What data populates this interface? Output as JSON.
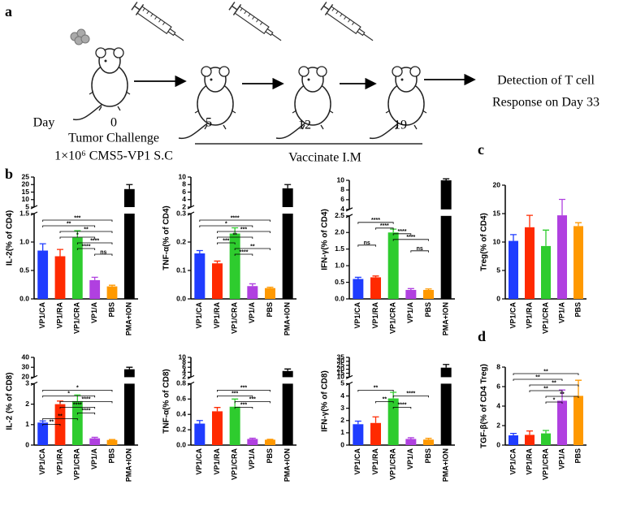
{
  "schematic": {
    "panel": "a",
    "day_label": "Day",
    "days": [
      "0",
      "5",
      "12",
      "19"
    ],
    "challenge": "Tumor Challenge",
    "dose": "1×10⁶ CMS5-VP1 S.C",
    "vaccinate": "Vaccinate I.M",
    "detection": [
      "Detection of T cell",
      "Response on Day 33"
    ]
  },
  "panel_labels": [
    "b",
    "c",
    "d"
  ],
  "chart_data": [
    {
      "type": "bar",
      "y_label": "IL-2(% of CD4)",
      "categories": [
        "VP1/CA",
        "VP1/RA",
        "VP1/CRA",
        "VP1/A",
        "PBS",
        "PMA+ION"
      ],
      "colors": [
        "#1f3cff",
        "#ff2a00",
        "#2ecc2e",
        "#b040e0",
        "#ff9900",
        "#000000"
      ],
      "values": [
        0.85,
        0.75,
        1.08,
        0.33,
        0.22,
        17
      ],
      "errors": [
        0.12,
        0.12,
        0.12,
        0.05,
        0.02,
        3
      ],
      "ylim": [
        0,
        1.5
      ],
      "yticks": [
        {
          "value": 0,
          "label": "0.0"
        },
        0.5,
        {
          "value": 1,
          "label": "1.0"
        },
        1.5
      ],
      "break": {
        "ylim": [
          5,
          25
        ],
        "yticks": [
          5,
          10,
          15,
          20,
          25
        ]
      },
      "annotations": [
        {
          "pair": [
            "VP1/CA",
            "PBS"
          ],
          "label": "***"
        },
        {
          "pair": [
            "VP1/CA",
            "VP1/A"
          ],
          "label": "**"
        },
        {
          "pair": [
            "VP1/RA",
            "PBS"
          ],
          "label": "**"
        },
        {
          "pair": [
            "VP1/RA",
            "VP1/A"
          ],
          "label": "*"
        },
        {
          "pair": [
            "VP1/CRA",
            "PBS"
          ],
          "label": "****"
        },
        {
          "pair": [
            "VP1/CRA",
            "VP1/A"
          ],
          "label": "****"
        },
        {
          "pair": [
            "VP1/A",
            "PBS"
          ],
          "label": "ns"
        }
      ]
    },
    {
      "type": "bar",
      "y_label": "TNF-α(% of CD4)",
      "categories": [
        "VP1/CA",
        "VP1/RA",
        "VP1/CRA",
        "VP1/A",
        "PBS",
        "PMA+ION"
      ],
      "colors": [
        "#1f3cff",
        "#ff2a00",
        "#2ecc2e",
        "#b040e0",
        "#ff9900",
        "#000000"
      ],
      "values": [
        0.16,
        0.125,
        0.23,
        0.045,
        0.038,
        7
      ],
      "errors": [
        0.01,
        0.008,
        0.02,
        0.008,
        0.003,
        1
      ],
      "ylim": [
        0,
        0.3
      ],
      "yticks": [
        {
          "value": 0,
          "label": "0.0"
        },
        0.1,
        0.2,
        0.3
      ],
      "break": {
        "ylim": [
          2,
          10
        ],
        "yticks": [
          2,
          4,
          6,
          8,
          10
        ]
      },
      "annotations": [
        {
          "pair": [
            "VP1/CA",
            "PBS"
          ],
          "label": "****"
        },
        {
          "pair": [
            "VP1/CA",
            "VP1/A"
          ],
          "label": "*"
        },
        {
          "pair": [
            "VP1/RA",
            "PBS"
          ],
          "label": "***"
        },
        {
          "pair": [
            "VP1/RA",
            "VP1/A"
          ],
          "label": "**"
        },
        {
          "pair": [
            "VP1/RA",
            "VP1/CRA"
          ],
          "label": "***"
        },
        {
          "pair": [
            "VP1/CRA",
            "PBS"
          ],
          "label": "**"
        },
        {
          "pair": [
            "VP1/CRA",
            "VP1/A"
          ],
          "label": "****"
        }
      ]
    },
    {
      "type": "bar",
      "y_label": "IFN-γ(% of CD4)",
      "categories": [
        "VP1/CA",
        "VP1/RA",
        "VP1/CRA",
        "VP1/A",
        "PBS",
        "PMA+ION"
      ],
      "colors": [
        "#1f3cff",
        "#ff2a00",
        "#2ecc2e",
        "#b040e0",
        "#ff9900",
        "#000000"
      ],
      "values": [
        0.6,
        0.65,
        2.0,
        0.27,
        0.27,
        10
      ],
      "errors": [
        0.05,
        0.04,
        0.1,
        0.04,
        0.03,
        0.3
      ],
      "ylim": [
        0,
        2.5
      ],
      "yticks": [
        {
          "value": 0,
          "label": "0.0"
        },
        0.5,
        {
          "value": 1,
          "label": "1.0"
        },
        1.5,
        {
          "value": 2,
          "label": "2.0"
        },
        2.5
      ],
      "break": {
        "ylim": [
          4,
          10
        ],
        "yticks": [
          4,
          6,
          8,
          10
        ]
      },
      "annotations": [
        {
          "pair": [
            "VP1/CA",
            "VP1/CRA"
          ],
          "label": "****"
        },
        {
          "pair": [
            "VP1/RA",
            "VP1/CRA"
          ],
          "label": "****"
        },
        {
          "pair": [
            "VP1/CRA",
            "VP1/A"
          ],
          "label": "****"
        },
        {
          "pair": [
            "VP1/CRA",
            "PBS"
          ],
          "label": "****"
        },
        {
          "pair": [
            "VP1/CA",
            "VP1/RA"
          ],
          "label": "ns"
        },
        {
          "pair": [
            "VP1/A",
            "PBS"
          ],
          "label": "ns"
        }
      ]
    },
    {
      "type": "bar",
      "y_label": "Treg(% of CD4)",
      "categories": [
        "VP1/CA",
        "VP1/RA",
        "VP1/CRA",
        "VP1/A",
        "PBS"
      ],
      "colors": [
        "#1f3cff",
        "#ff2a00",
        "#2ecc2e",
        "#b040e0",
        "#ff9900"
      ],
      "values": [
        10.2,
        12.6,
        9.3,
        14.7,
        12.8
      ],
      "errors": [
        1.1,
        2.1,
        2.8,
        2.8,
        0.6
      ],
      "ylim": [
        0,
        20
      ],
      "yticks": [
        0,
        5,
        10,
        15,
        20
      ]
    },
    {
      "type": "bar",
      "y_label": "IL-2 (% of CD8)",
      "categories": [
        "VP1/CA",
        "VP1/RA",
        "VP1/CRA",
        "VP1/A",
        "PBS",
        "PMA+ION"
      ],
      "colors": [
        "#1f3cff",
        "#ff2a00",
        "#2ecc2e",
        "#b040e0",
        "#ff9900",
        "#000000"
      ],
      "values": [
        1.1,
        2.0,
        2.15,
        0.33,
        0.25,
        28
      ],
      "errors": [
        0.08,
        0.15,
        0.3,
        0.05,
        0.02,
        2
      ],
      "ylim": [
        0,
        3
      ],
      "yticks": [
        0,
        1,
        2,
        3
      ],
      "break": {
        "ylim": [
          20,
          40
        ],
        "yticks": [
          20,
          30,
          40
        ]
      },
      "annotations": [
        {
          "pair": [
            "VP1/CA",
            "PBS"
          ],
          "label": "*"
        },
        {
          "pair": [
            "VP1/CA",
            "VP1/A"
          ],
          "label": "*"
        },
        {
          "pair": [
            "VP1/RA",
            "PBS"
          ],
          "label": "****"
        },
        {
          "pair": [
            "VP1/RA",
            "VP1/A"
          ],
          "label": "****"
        },
        {
          "pair": [
            "VP1/CRA",
            "VP1/A"
          ],
          "label": "****"
        },
        {
          "pair": [
            "VP1/CA",
            "VP1/CRA"
          ],
          "label": "**"
        },
        {
          "pair": [
            "VP1/CA",
            "VP1/RA"
          ],
          "label": "**"
        }
      ]
    },
    {
      "type": "bar",
      "y_label": "TNF-α(% of CD8)",
      "categories": [
        "VP1/CA",
        "VP1/RA",
        "VP1/CRA",
        "VP1/A",
        "PBS",
        "PMA+ION"
      ],
      "colors": [
        "#1f3cff",
        "#ff2a00",
        "#2ecc2e",
        "#b040e0",
        "#ff9900",
        "#000000"
      ],
      "values": [
        0.28,
        0.44,
        0.5,
        0.08,
        0.07,
        4.5
      ],
      "errors": [
        0.04,
        0.05,
        0.1,
        0.01,
        0.005,
        0.8
      ],
      "ylim": [
        0,
        0.8
      ],
      "yticks": [
        {
          "value": 0,
          "label": "0.0"
        },
        0.2,
        0.4,
        0.6,
        0.8
      ],
      "break": {
        "ylim": [
          2,
          10
        ],
        "yticks": [
          2,
          4,
          6,
          8,
          10
        ]
      },
      "annotations": [
        {
          "pair": [
            "VP1/RA",
            "PBS"
          ],
          "label": "***"
        },
        {
          "pair": [
            "VP1/RA",
            "VP1/A"
          ],
          "label": "***"
        },
        {
          "pair": [
            "VP1/CRA",
            "PBS"
          ],
          "label": "***"
        },
        {
          "pair": [
            "VP1/CRA",
            "VP1/A"
          ],
          "label": "***"
        }
      ]
    },
    {
      "type": "bar",
      "y_label": "IFN-γ(% of CD8)",
      "categories": [
        "VP1/CA",
        "VP1/RA",
        "VP1/CRA",
        "VP1/A",
        "PBS",
        "PMA+ION"
      ],
      "colors": [
        "#1f3cff",
        "#ff2a00",
        "#2ecc2e",
        "#b040e0",
        "#ff9900",
        "#000000"
      ],
      "values": [
        1.7,
        1.8,
        3.8,
        0.5,
        0.45,
        22
      ],
      "errors": [
        0.25,
        0.5,
        0.5,
        0.1,
        0.1,
        4
      ],
      "ylim": [
        0,
        5
      ],
      "yticks": [
        0,
        1,
        2,
        3,
        4,
        5
      ],
      "break": {
        "ylim": [
          10,
          35
        ],
        "yticks": [
          10,
          15,
          20,
          25,
          30,
          35
        ]
      },
      "annotations": [
        {
          "pair": [
            "VP1/CA",
            "VP1/CRA"
          ],
          "label": "**"
        },
        {
          "pair": [
            "VP1/CRA",
            "PBS"
          ],
          "label": "****"
        },
        {
          "pair": [
            "VP1/RA",
            "VP1/CRA"
          ],
          "label": "**"
        },
        {
          "pair": [
            "VP1/CRA",
            "VP1/A"
          ],
          "label": "****"
        }
      ]
    },
    {
      "type": "bar",
      "y_label": "TGF-β(% of CD4 Treg)",
      "categories": [
        "VP1/CA",
        "VP1/RA",
        "VP1/CRA",
        "VP1/A",
        "PBS"
      ],
      "colors": [
        "#1f3cff",
        "#ff2a00",
        "#2ecc2e",
        "#b040e0",
        "#ff9900"
      ],
      "values": [
        1.0,
        1.05,
        1.2,
        4.55,
        5.05
      ],
      "errors": [
        0.2,
        0.4,
        0.3,
        1.1,
        1.6
      ],
      "ylim": [
        0,
        8
      ],
      "yticks": [
        0,
        2,
        4,
        6,
        8
      ],
      "annotations": [
        {
          "pair": [
            "VP1/CA",
            "PBS"
          ],
          "label": "**"
        },
        {
          "pair": [
            "VP1/CA",
            "VP1/A"
          ],
          "label": "**"
        },
        {
          "pair": [
            "VP1/RA",
            "PBS"
          ],
          "label": "**"
        },
        {
          "pair": [
            "VP1/RA",
            "VP1/A"
          ],
          "label": "**"
        },
        {
          "pair": [
            "VP1/CRA",
            "PBS"
          ],
          "label": "**"
        },
        {
          "pair": [
            "VP1/CRA",
            "VP1/A"
          ],
          "label": "*"
        }
      ]
    }
  ]
}
